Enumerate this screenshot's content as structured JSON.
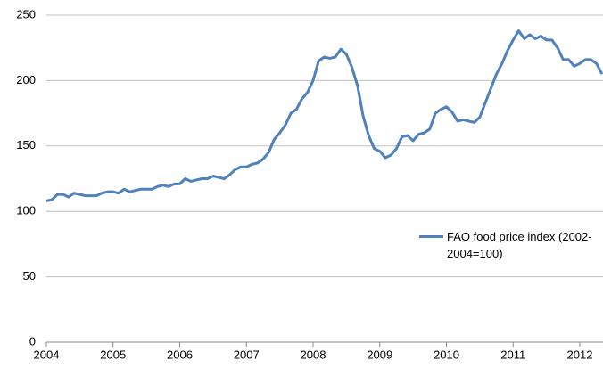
{
  "chart_data": {
    "type": "line",
    "x": [
      2004,
      2004.083,
      2004.167,
      2004.25,
      2004.333,
      2004.417,
      2004.5,
      2004.583,
      2004.667,
      2004.75,
      2004.833,
      2004.917,
      2005,
      2005.083,
      2005.167,
      2005.25,
      2005.333,
      2005.417,
      2005.5,
      2005.583,
      2005.667,
      2005.75,
      2005.833,
      2005.917,
      2006,
      2006.083,
      2006.167,
      2006.25,
      2006.333,
      2006.417,
      2006.5,
      2006.583,
      2006.667,
      2006.75,
      2006.833,
      2006.917,
      2007,
      2007.083,
      2007.167,
      2007.25,
      2007.333,
      2007.417,
      2007.5,
      2007.583,
      2007.667,
      2007.75,
      2007.833,
      2007.917,
      2008,
      2008.083,
      2008.167,
      2008.25,
      2008.333,
      2008.417,
      2008.5,
      2008.583,
      2008.667,
      2008.75,
      2008.833,
      2008.917,
      2009,
      2009.083,
      2009.167,
      2009.25,
      2009.333,
      2009.417,
      2009.5,
      2009.583,
      2009.667,
      2009.75,
      2009.833,
      2009.917,
      2010,
      2010.083,
      2010.167,
      2010.25,
      2010.333,
      2010.417,
      2010.5,
      2010.583,
      2010.667,
      2010.75,
      2010.833,
      2010.917,
      2011,
      2011.083,
      2011.167,
      2011.25,
      2011.333,
      2011.417,
      2011.5,
      2011.583,
      2011.667,
      2011.75,
      2011.833,
      2011.917,
      2012,
      2012.083,
      2012.167,
      2012.25,
      2012.333
    ],
    "series": [
      {
        "name": "FAO food price index (2002-2004=100)",
        "color": "#4f81bd",
        "values": [
          108,
          109,
          113,
          113,
          111,
          114,
          113,
          112,
          112,
          112,
          114,
          115,
          115,
          114,
          117,
          115,
          116,
          117,
          117,
          117,
          119,
          120,
          119,
          121,
          121,
          125,
          123,
          124,
          125,
          125,
          127,
          126,
          125,
          128,
          132,
          134,
          134,
          136,
          137,
          140,
          145,
          155,
          160,
          166,
          175,
          178,
          186,
          191,
          200,
          215,
          218,
          217,
          218,
          224,
          220,
          210,
          196,
          173,
          158,
          148,
          146,
          141,
          143,
          148,
          157,
          158,
          154,
          159,
          160,
          163,
          175,
          178,
          180,
          176,
          169,
          170,
          169,
          168,
          172,
          183,
          194,
          205,
          213,
          223,
          231,
          238,
          232,
          235,
          232,
          234,
          231,
          231,
          225,
          216,
          216,
          211,
          213,
          216,
          216,
          213,
          205
        ]
      }
    ],
    "xlim": [
      2004,
      2012.348
    ],
    "xticks": [
      2004,
      2005,
      2006,
      2007,
      2008,
      2009,
      2010,
      2011,
      2012
    ],
    "ylim": [
      0,
      250
    ],
    "yticks": [
      0,
      50,
      100,
      150,
      200,
      250
    ],
    "grid": true
  }
}
